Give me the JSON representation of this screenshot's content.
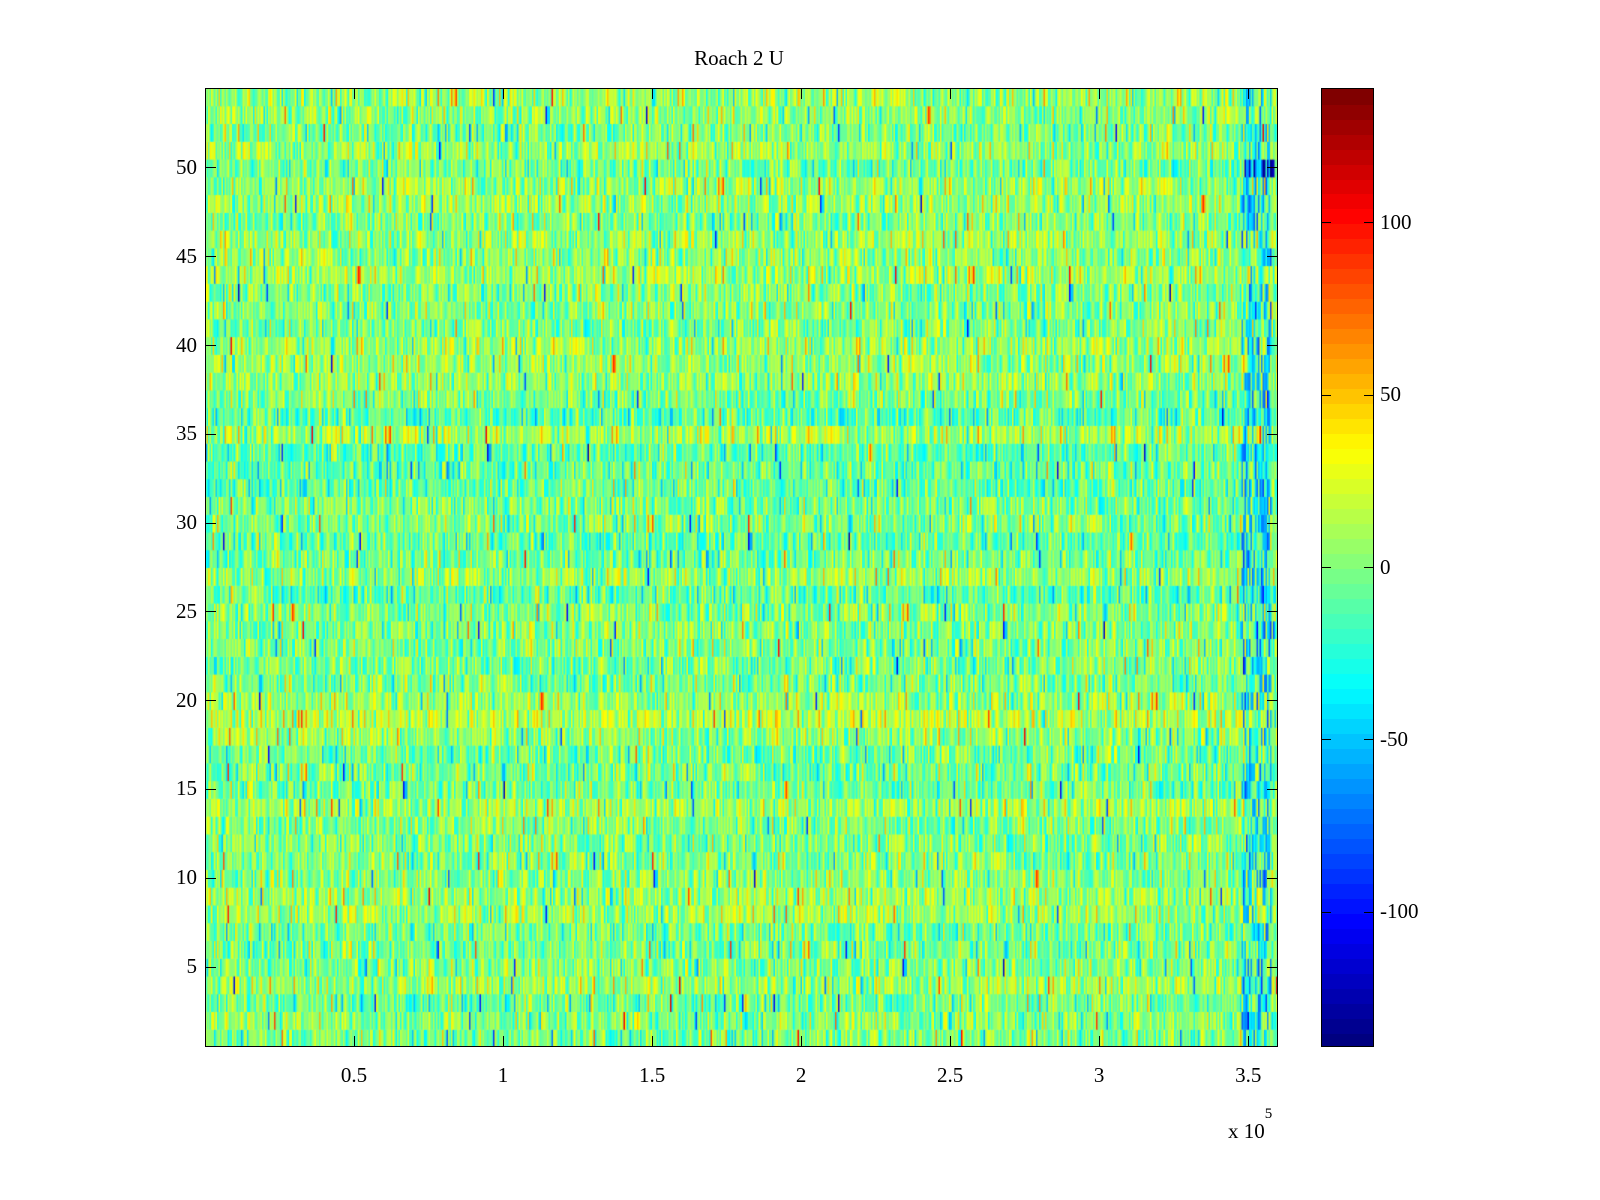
{
  "chart_data": {
    "type": "heatmap",
    "title": "Roach 2 U",
    "xlabel": "",
    "ylabel": "",
    "x_multiplier_label": "x 10",
    "x_multiplier_exponent": "5",
    "xlim": [
      0,
      360000
    ],
    "ylim": [
      0.5,
      54.5
    ],
    "rows": 54,
    "x_ticks": [
      50000,
      100000,
      150000,
      200000,
      250000,
      300000,
      350000
    ],
    "x_tick_labels": [
      "0.5",
      "1",
      "1.5",
      "2",
      "2.5",
      "3",
      "3.5"
    ],
    "y_ticks": [
      5,
      10,
      15,
      20,
      25,
      30,
      35,
      40,
      45,
      50
    ],
    "y_tick_labels": [
      "5",
      "10",
      "15",
      "20",
      "25",
      "30",
      "35",
      "40",
      "45",
      "50"
    ],
    "colormap": "jet",
    "clim": [
      -139,
      139
    ],
    "colorbar_ticks": [
      -100,
      -50,
      0,
      50,
      100
    ],
    "colorbar_tick_labels": [
      "-100",
      "-50",
      "0",
      "50",
      "100"
    ],
    "value_distribution": {
      "typical_mean": 0,
      "typical_std": 20
    },
    "features": [
      {
        "description": "strong negative block",
        "row": 50,
        "x_range": [
          349000,
          359000
        ],
        "value": -125
      },
      {
        "description": "negative values near right edge on many rows",
        "x_range": [
          348000,
          358000
        ],
        "value": -55
      }
    ]
  }
}
